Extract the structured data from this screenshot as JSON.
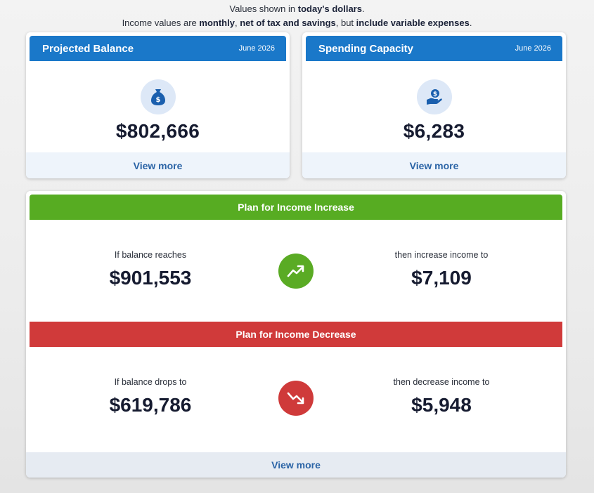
{
  "note": {
    "line1_prefix": "Values shown in ",
    "line1_bold": "today's dollars",
    "line1_suffix": ".",
    "line2_a": "Income values are ",
    "line2_b": "monthly",
    "line2_c": ", ",
    "line2_d": "net of tax and savings",
    "line2_e": ", but ",
    "line2_f": "include variable expenses",
    "line2_g": "."
  },
  "projected_balance": {
    "title": "Projected Balance",
    "date": "June 2026",
    "value": "$802,666",
    "view_more": "View more",
    "icon": "money-bag-icon"
  },
  "spending_capacity": {
    "title": "Spending Capacity",
    "date": "June 2026",
    "value": "$6,283",
    "view_more": "View more",
    "icon": "hand-coin-icon"
  },
  "plan_increase": {
    "title": "Plan for Income Increase",
    "condition_label": "If balance reaches",
    "condition_value": "$901,553",
    "result_label": "then increase income to",
    "result_value": "$7,109",
    "icon": "trend-up-icon"
  },
  "plan_decrease": {
    "title": "Plan for Income Decrease",
    "condition_label": "If balance drops to",
    "condition_value": "$619,786",
    "result_label": "then decrease income to",
    "result_value": "$5,948",
    "icon": "trend-down-icon"
  },
  "plan_view_more": "View more",
  "colors": {
    "header_blue": "#1a78c9",
    "increase_green": "#57ac22",
    "decrease_red": "#d03a3a",
    "link_blue": "#2b64a6"
  }
}
